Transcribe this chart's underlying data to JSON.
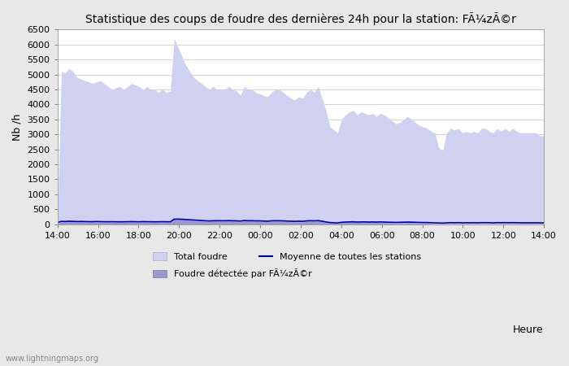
{
  "title": "Statistique des coups de foudre des dernières 24h pour la station: FÃ¼zÃ©r",
  "ylabel": "Nb /h",
  "xlabel": "Heure",
  "ylim": [
    0,
    6500
  ],
  "yticks": [
    0,
    500,
    1000,
    1500,
    2000,
    2500,
    3000,
    3500,
    4000,
    4500,
    5000,
    5500,
    6000,
    6500
  ],
  "xtick_labels": [
    "14:00",
    "16:00",
    "18:00",
    "20:00",
    "22:00",
    "00:00",
    "02:00",
    "04:00",
    "06:00",
    "08:00",
    "10:00",
    "12:00",
    "14:00"
  ],
  "fig_bg_color": "#e8e8e8",
  "plot_bg_color": "#ffffff",
  "total_foudre_color": "#d0d0f0",
  "detected_color": "#9999cc",
  "moyenne_color": "#0000aa",
  "legend_labels": [
    "Total foudre",
    "Moyenne de toutes les stations",
    "Foudre détectée par FÃ¼zÃ©r"
  ],
  "watermark": "www.lightningmaps.org",
  "total_foudre": [
    50,
    5100,
    5050,
    5200,
    5100,
    4900,
    4850,
    4800,
    4750,
    4700,
    4750,
    4800,
    4700,
    4600,
    4500,
    4550,
    4600,
    4500,
    4600,
    4700,
    4650,
    4600,
    4500,
    4600,
    4500,
    4500,
    4400,
    4500,
    4400,
    4450,
    6200,
    5900,
    5600,
    5300,
    5100,
    4900,
    4800,
    4700,
    4600,
    4500,
    4600,
    4500,
    4500,
    4500,
    4600,
    4500,
    4450,
    4300,
    4600,
    4500,
    4500,
    4400,
    4350,
    4300,
    4250,
    4400,
    4500,
    4500,
    4400,
    4300,
    4200,
    4150,
    4250,
    4200,
    4400,
    4500,
    4400,
    4600,
    4200,
    3800,
    3250,
    3150,
    3050,
    3500,
    3650,
    3750,
    3800,
    3650,
    3750,
    3700,
    3650,
    3700,
    3600,
    3700,
    3650,
    3550,
    3450,
    3350,
    3400,
    3500,
    3600,
    3500,
    3400,
    3300,
    3250,
    3200,
    3100,
    3050,
    2550,
    2450,
    3050,
    3200,
    3150,
    3200,
    3050,
    3100,
    3050,
    3100,
    3050,
    3200,
    3200,
    3100,
    3050,
    3200,
    3100,
    3200,
    3100,
    3200,
    3100,
    3050,
    3050,
    3050,
    3050,
    3050,
    2950,
    2950
  ],
  "detected": [
    20,
    80,
    80,
    90,
    85,
    75,
    80,
    75,
    75,
    70,
    75,
    75,
    70,
    65,
    65,
    68,
    70,
    68,
    70,
    75,
    72,
    70,
    75,
    70,
    68,
    68,
    65,
    68,
    65,
    68,
    160,
    170,
    165,
    148,
    132,
    122,
    115,
    108,
    100,
    92,
    100,
    100,
    100,
    100,
    108,
    100,
    95,
    85,
    108,
    100,
    100,
    95,
    92,
    85,
    82,
    92,
    100,
    100,
    95,
    85,
    82,
    78,
    82,
    78,
    92,
    100,
    95,
    108,
    85,
    62,
    42,
    35,
    28,
    52,
    62,
    70,
    78,
    62,
    70,
    70,
    62,
    70,
    62,
    70,
    62,
    52,
    42,
    35,
    42,
    52,
    62,
    52,
    42,
    35,
    28,
    28,
    18,
    8,
    8,
    8,
    8,
    8,
    8,
    8,
    8,
    8,
    8,
    8,
    8,
    8,
    8,
    8,
    8,
    8,
    8,
    8,
    8,
    8,
    8,
    8,
    8,
    8,
    8,
    8,
    8,
    8
  ],
  "moyenne": [
    60,
    95,
    90,
    100,
    95,
    88,
    92,
    88,
    86,
    84,
    90,
    86,
    84,
    82,
    84,
    82,
    80,
    82,
    84,
    86,
    84,
    82,
    86,
    84,
    82,
    80,
    82,
    84,
    82,
    80,
    168,
    172,
    166,
    156,
    148,
    140,
    132,
    124,
    116,
    108,
    116,
    116,
    116,
    116,
    120,
    116,
    112,
    104,
    124,
    116,
    116,
    112,
    112,
    104,
    100,
    112,
    116,
    116,
    112,
    104,
    100,
    96,
    100,
    96,
    112,
    116,
    112,
    120,
    100,
    76,
    56,
    48,
    44,
    64,
    72,
    76,
    80,
    72,
    76,
    76,
    72,
    76,
    72,
    76,
    72,
    68,
    64,
    60,
    64,
    68,
    72,
    68,
    64,
    60,
    56,
    56,
    52,
    44,
    40,
    38,
    44,
    52,
    48,
    52,
    46,
    50,
    46,
    50,
    46,
    52,
    52,
    50,
    46,
    52,
    50,
    52,
    50,
    52,
    50,
    46,
    46,
    46,
    46,
    46,
    44,
    44
  ]
}
